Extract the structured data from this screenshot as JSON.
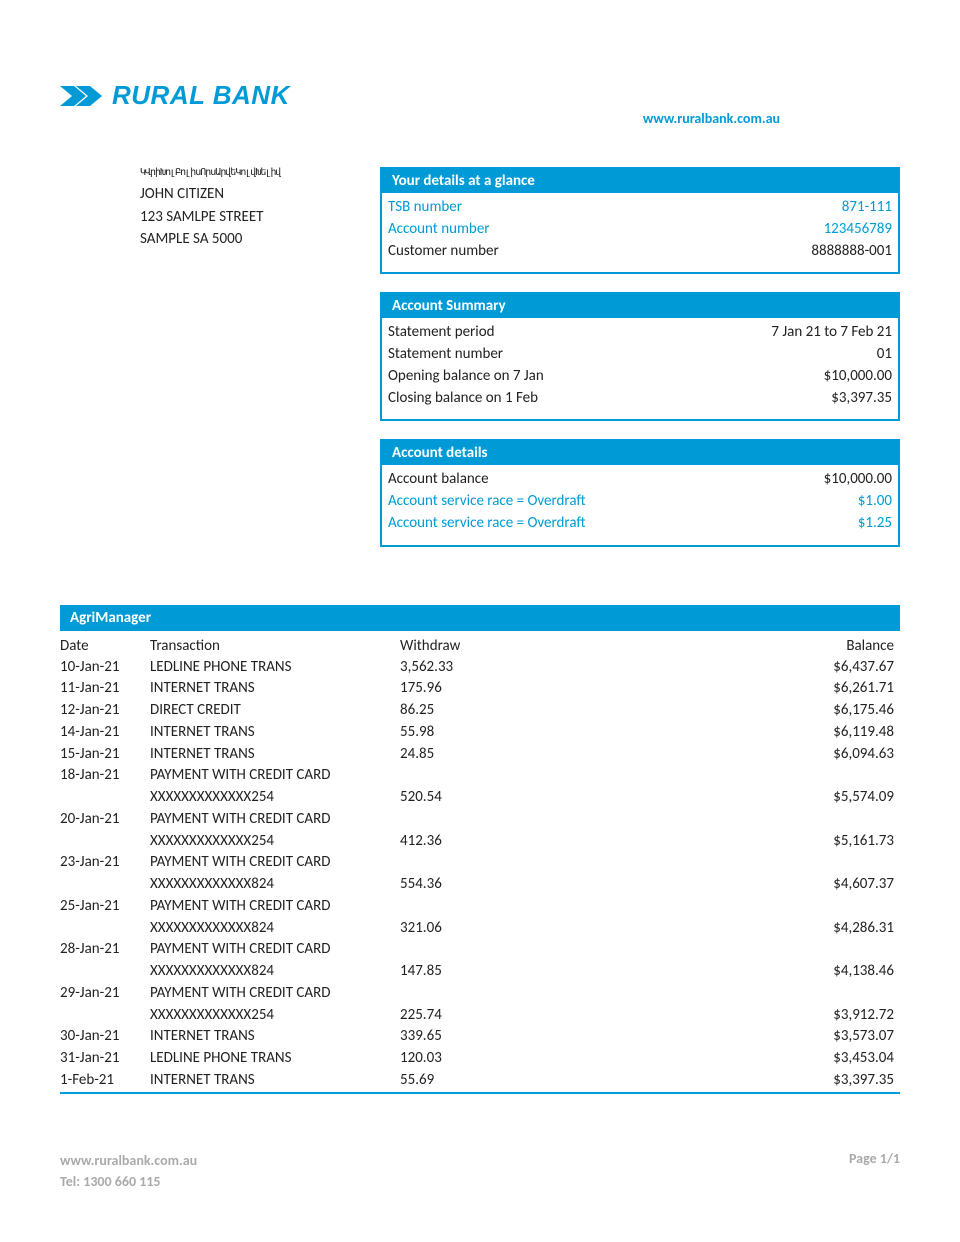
{
  "brand": {
    "name": "RURAL BANK",
    "color": "#009bd6",
    "url": "www.ruralbank.com.au"
  },
  "recipient": {
    "barcode": "ԿՎրիԽոլԲոլիսՈրսԱրվեԿոլվԽելիվ",
    "name": "JOHN CITIZEN",
    "street": "123 SAMLPE STREET",
    "city": "SAMPLE SA 5000"
  },
  "details_box": {
    "title": "Your details at a glance",
    "rows": [
      {
        "label": "TSB number",
        "value": "871-111",
        "highlight": true
      },
      {
        "label": "Account number",
        "value": "123456789",
        "highlight": true
      },
      {
        "label": "Customer number",
        "value": "8888888-001",
        "highlight": false
      }
    ]
  },
  "summary_box": {
    "title": "Account Summary",
    "rows": [
      {
        "label": "Statement period",
        "value": "7 Jan 21 to 7 Feb 21"
      },
      {
        "label": "Statement number",
        "value": "01"
      },
      {
        "label": "Opening balance on 7 Jan",
        "value": "$10,000.00"
      },
      {
        "label": "Closing balance on 1 Feb",
        "value": "$3,397.35"
      }
    ]
  },
  "account_details_box": {
    "title": "Account details",
    "rows": [
      {
        "label": "Account balance",
        "value": "$10,000.00",
        "highlight": false
      },
      {
        "label": "Account service race = Overdraft",
        "value": "$1.00",
        "highlight": true
      },
      {
        "label": "Account service race = Overdraft",
        "value": "$1.25",
        "highlight": true
      }
    ]
  },
  "transactions": {
    "section_title": "AgriManager",
    "columns": {
      "date": "Date",
      "transaction": "Transaction",
      "withdraw": "Withdraw",
      "balance": "Balance"
    },
    "rows": [
      {
        "date": "10-Jan-21",
        "desc": "LEDLINE PHONE TRANS",
        "withdraw": "3,562.33",
        "balance": "$6,437.67"
      },
      {
        "date": "11-Jan-21",
        "desc": "INTERNET TRANS",
        "withdraw": "175.96",
        "balance": "$6,261.71"
      },
      {
        "date": "12-Jan-21",
        "desc": "DIRECT CREDIT",
        "withdraw": "86.25",
        "balance": "$6,175.46"
      },
      {
        "date": "14-Jan-21",
        "desc": "INTERNET TRANS",
        "withdraw": "55.98",
        "balance": "$6,119.48"
      },
      {
        "date": "15-Jan-21",
        "desc": "INTERNET TRANS",
        "withdraw": "24.85",
        "balance": "$6,094.63"
      },
      {
        "date": "18-Jan-21",
        "desc": "PAYMENT WITH CREDIT CARD\nXXXXXXXXXXXXX254",
        "withdraw": "520.54",
        "balance": "$5,574.09"
      },
      {
        "date": "20-Jan-21",
        "desc": "PAYMENT WITH CREDIT CARD\nXXXXXXXXXXXXX254",
        "withdraw": "412.36",
        "balance": "$5,161.73"
      },
      {
        "date": "23-Jan-21",
        "desc": "PAYMENT WITH CREDIT CARD\nXXXXXXXXXXXXX824",
        "withdraw": "554.36",
        "balance": "$4,607.37"
      },
      {
        "date": "25-Jan-21",
        "desc": "PAYMENT WITH CREDIT CARD\nXXXXXXXXXXXXX824",
        "withdraw": "321.06",
        "balance": "$4,286.31"
      },
      {
        "date": "28-Jan-21",
        "desc": "PAYMENT WITH CREDIT CARD\nXXXXXXXXXXXXX824",
        "withdraw": "147.85",
        "balance": "$4,138.46"
      },
      {
        "date": "29-Jan-21",
        "desc": "PAYMENT WITH CREDIT CARD\nXXXXXXXXXXXXX254",
        "withdraw": "225.74",
        "balance": "$3,912.72"
      },
      {
        "date": "30-Jan-21",
        "desc": "INTERNET TRANS",
        "withdraw": "339.65",
        "balance": "$3,573.07"
      },
      {
        "date": "31-Jan-21",
        "desc": "LEDLINE PHONE TRANS",
        "withdraw": "120.03",
        "balance": "$3,453.04"
      },
      {
        "date": "1-Feb-21",
        "desc": "INTERNET TRANS",
        "withdraw": "55.69",
        "balance": "$3,397.35"
      }
    ]
  },
  "footer": {
    "url": "www.ruralbank.com.au",
    "tel": "Tel: 1300 660 115",
    "page": "Page 1/1"
  }
}
